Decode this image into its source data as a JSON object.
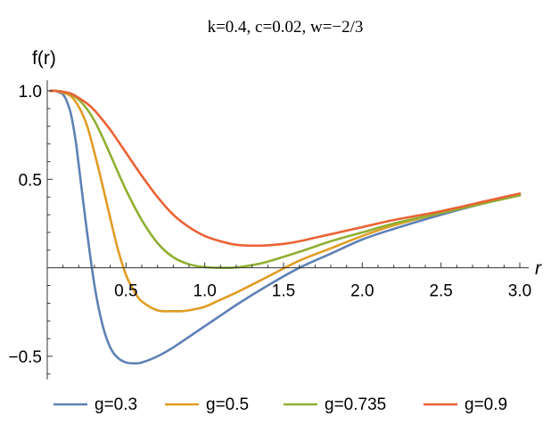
{
  "chart_data": {
    "type": "line",
    "title": "k=0.4, c=0.02, w=−2/3",
    "xlabel": "r",
    "ylabel": "f(r)",
    "xlim": [
      0,
      3.0
    ],
    "ylim": [
      -0.63,
      1.06
    ],
    "x_ticks": [
      {
        "value": 0.5,
        "label": "0.5"
      },
      {
        "value": 1.0,
        "label": "1.0"
      },
      {
        "value": 1.5,
        "label": "1.5"
      },
      {
        "value": 2.0,
        "label": "2.0"
      },
      {
        "value": 2.5,
        "label": "2.5"
      },
      {
        "value": 3.0,
        "label": "3.0"
      }
    ],
    "y_ticks": [
      {
        "value": -0.5,
        "label": "−0.5"
      },
      {
        "value": 0.5,
        "label": "0.5"
      },
      {
        "value": 1.0,
        "label": "1.0"
      }
    ],
    "grid": false,
    "legend_position": "bottom",
    "series": [
      {
        "name": "g=0.3",
        "color": "#5E81B5",
        "x": [
          0.02,
          0.05,
          0.08,
          0.1,
          0.12,
          0.15,
          0.18,
          0.2,
          0.25,
          0.3,
          0.35,
          0.4,
          0.45,
          0.5,
          0.55,
          0.6,
          0.7,
          0.8,
          0.9,
          1.0,
          1.2,
          1.4,
          1.6,
          1.8,
          2.0,
          2.2,
          2.5,
          2.8,
          3.0
        ],
        "y": [
          1.0,
          1.0,
          0.99,
          0.98,
          0.95,
          0.87,
          0.72,
          0.58,
          0.22,
          -0.1,
          -0.32,
          -0.45,
          -0.51,
          -0.535,
          -0.54,
          -0.535,
          -0.5,
          -0.45,
          -0.39,
          -0.33,
          -0.21,
          -0.1,
          0.0,
          0.08,
          0.16,
          0.22,
          0.3,
          0.37,
          0.41
        ]
      },
      {
        "name": "g=0.5",
        "color": "#E19C24",
        "x": [
          0.02,
          0.05,
          0.1,
          0.15,
          0.2,
          0.25,
          0.3,
          0.35,
          0.4,
          0.45,
          0.5,
          0.55,
          0.6,
          0.7,
          0.8,
          0.85,
          0.9,
          1.0,
          1.1,
          1.2,
          1.4,
          1.6,
          1.8,
          2.0,
          2.2,
          2.5,
          2.8,
          3.0
        ],
        "y": [
          1.0,
          1.0,
          0.99,
          0.97,
          0.91,
          0.81,
          0.65,
          0.47,
          0.28,
          0.1,
          -0.04,
          -0.13,
          -0.19,
          -0.24,
          -0.245,
          -0.245,
          -0.24,
          -0.22,
          -0.18,
          -0.14,
          -0.05,
          0.04,
          0.11,
          0.18,
          0.24,
          0.31,
          0.37,
          0.41
        ]
      },
      {
        "name": "g=0.735",
        "color": "#8FB032",
        "x": [
          0.02,
          0.05,
          0.1,
          0.15,
          0.2,
          0.25,
          0.3,
          0.35,
          0.4,
          0.5,
          0.6,
          0.7,
          0.8,
          0.9,
          1.0,
          1.1,
          1.15,
          1.2,
          1.3,
          1.4,
          1.6,
          1.8,
          2.0,
          2.2,
          2.5,
          2.8,
          3.0
        ],
        "y": [
          1.0,
          1.0,
          0.995,
          0.98,
          0.95,
          0.9,
          0.83,
          0.74,
          0.64,
          0.44,
          0.27,
          0.14,
          0.06,
          0.02,
          0.004,
          0.0,
          0.0,
          0.002,
          0.015,
          0.035,
          0.09,
          0.15,
          0.2,
          0.25,
          0.31,
          0.37,
          0.41
        ]
      },
      {
        "name": "g=0.9",
        "color": "#EB6235",
        "x": [
          0.02,
          0.05,
          0.1,
          0.15,
          0.2,
          0.25,
          0.3,
          0.4,
          0.5,
          0.6,
          0.7,
          0.8,
          0.9,
          1.0,
          1.1,
          1.2,
          1.3,
          1.4,
          1.5,
          1.6,
          1.8,
          2.0,
          2.2,
          2.5,
          2.8,
          3.0
        ],
        "y": [
          1.0,
          1.0,
          0.995,
          0.985,
          0.96,
          0.93,
          0.89,
          0.78,
          0.65,
          0.52,
          0.4,
          0.3,
          0.23,
          0.18,
          0.15,
          0.13,
          0.125,
          0.127,
          0.135,
          0.15,
          0.19,
          0.23,
          0.27,
          0.32,
          0.38,
          0.42
        ]
      }
    ]
  }
}
